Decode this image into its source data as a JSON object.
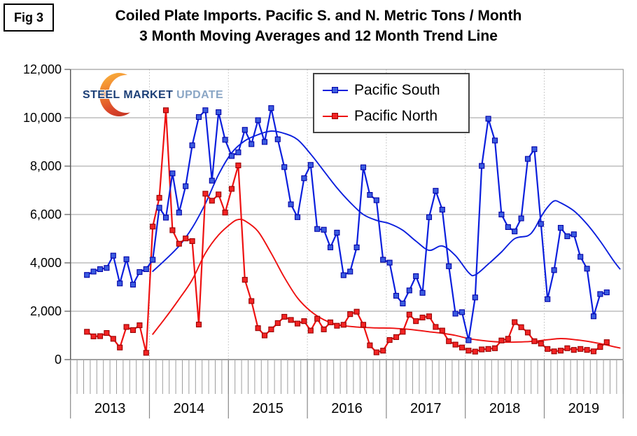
{
  "figure_label": "Fig 3",
  "title": {
    "line1": "Coiled Plate Imports. Pacific S. and N. Metric Tons / Month",
    "line2": "3 Month Moving Averages and 12 Month Trend Line"
  },
  "logo": {
    "word1": "STEEL",
    "word2": "MARKET",
    "word3": "UPDATE"
  },
  "legend": {
    "items": [
      {
        "label": "Pacific South"
      },
      {
        "label": "Pacific North"
      }
    ]
  },
  "chart_data": {
    "type": "line",
    "title": "Coiled Plate Imports. Pacific S. and N. Metric Tons / Month - 3 Month Moving Averages and 12 Month Trend Line",
    "xlabel": "",
    "ylabel": "Metric Tons / Month",
    "ylim": [
      0,
      12000
    ],
    "grid": true,
    "legend_position": "top-center",
    "y_ticks": [
      0,
      2000,
      4000,
      6000,
      8000,
      10000,
      12000
    ],
    "y_tick_labels": [
      "0",
      "2,000",
      "4,000",
      "6,000",
      "8,000",
      "10,000",
      "12,000"
    ],
    "x_year_labels": [
      "2013",
      "2014",
      "2015",
      "2016",
      "2017",
      "2018",
      "2019"
    ],
    "months_per_year": 12,
    "first_data_month": "2013-03",
    "last_data_month": "2019-10",
    "start_month_index": 2,
    "series": [
      {
        "name": "Pacific South",
        "kind": "3-month moving average",
        "line_color": "#0b1fdd",
        "marker_color": "#3b5ce0",
        "marker_edge": "#0000a8",
        "values": [
          3500,
          3640,
          3740,
          3790,
          4300,
          3150,
          4150,
          3100,
          3620,
          3740,
          4130,
          6280,
          5870,
          7700,
          6080,
          7170,
          8860,
          10030,
          10310,
          7400,
          10230,
          9090,
          8420,
          8570,
          9500,
          8910,
          9900,
          9000,
          10400,
          9110,
          7960,
          6420,
          5890,
          7500,
          8050,
          5400,
          5370,
          4640,
          5250,
          3490,
          3640,
          4640,
          7950,
          6810,
          6590,
          4130,
          4010,
          2640,
          2320,
          2860,
          3450,
          2760,
          5890,
          6980,
          6200,
          3860,
          1900,
          1960,
          800,
          2570,
          8010,
          9960,
          9060,
          6000,
          5480,
          5300,
          5840,
          8300,
          8700,
          5610,
          2500,
          3700,
          5450,
          5100,
          5180,
          4250,
          3760,
          1790,
          2710,
          2780
        ]
      },
      {
        "name": "Pacific North",
        "kind": "3-month moving average",
        "line_color": "#ee1111",
        "marker_color": "#f22424",
        "marker_edge": "#990000",
        "values": [
          1150,
          960,
          970,
          1100,
          860,
          500,
          1350,
          1220,
          1420,
          280,
          5500,
          6690,
          10310,
          5350,
          4790,
          5010,
          4900,
          1450,
          6860,
          6570,
          6830,
          6080,
          7060,
          8030,
          3300,
          2420,
          1300,
          1000,
          1250,
          1510,
          1770,
          1640,
          1490,
          1590,
          1200,
          1690,
          1250,
          1540,
          1400,
          1440,
          1880,
          1980,
          1440,
          590,
          300,
          370,
          810,
          930,
          1150,
          1860,
          1590,
          1740,
          1790,
          1350,
          1200,
          760,
          620,
          500,
          370,
          330,
          420,
          440,
          470,
          790,
          860,
          1550,
          1340,
          1120,
          760,
          660,
          440,
          340,
          370,
          470,
          400,
          440,
          400,
          340,
          520,
          720
        ]
      },
      {
        "name": "Pacific South trend",
        "kind": "12-month trend line",
        "line_color": "#0b1fdd",
        "points": [
          [
            12,
            3650
          ],
          [
            14,
            4150
          ],
          [
            16,
            4700
          ],
          [
            18,
            5450
          ],
          [
            20,
            6450
          ],
          [
            22,
            7650
          ],
          [
            24,
            8550
          ],
          [
            26,
            9050
          ],
          [
            28,
            9300
          ],
          [
            30,
            9450
          ],
          [
            32,
            9350
          ],
          [
            34,
            9100
          ],
          [
            36,
            8500
          ],
          [
            38,
            7800
          ],
          [
            40,
            7100
          ],
          [
            42,
            6500
          ],
          [
            44,
            6000
          ],
          [
            46,
            5760
          ],
          [
            48,
            5620
          ],
          [
            50,
            5350
          ],
          [
            52,
            4900
          ],
          [
            54,
            4520
          ],
          [
            56,
            4700
          ],
          [
            58,
            4300
          ],
          [
            60,
            3600
          ],
          [
            61,
            3500
          ],
          [
            63,
            3950
          ],
          [
            65,
            4450
          ],
          [
            67,
            5000
          ],
          [
            69,
            5120
          ],
          [
            70,
            5400
          ],
          [
            71,
            5900
          ],
          [
            72,
            6300
          ],
          [
            73,
            6560
          ],
          [
            74,
            6480
          ],
          [
            76,
            6150
          ],
          [
            78,
            5600
          ],
          [
            80,
            4900
          ],
          [
            82,
            4100
          ],
          [
            83,
            3750
          ]
        ]
      },
      {
        "name": "Pacific North trend",
        "kind": "12-month trend line",
        "line_color": "#ee1111",
        "points": [
          [
            12,
            1050
          ],
          [
            14,
            1750
          ],
          [
            16,
            2500
          ],
          [
            18,
            3300
          ],
          [
            20,
            4400
          ],
          [
            22,
            5150
          ],
          [
            24,
            5650
          ],
          [
            25,
            5790
          ],
          [
            26,
            5740
          ],
          [
            28,
            5300
          ],
          [
            30,
            4400
          ],
          [
            32,
            3400
          ],
          [
            34,
            2550
          ],
          [
            36,
            2000
          ],
          [
            38,
            1650
          ],
          [
            40,
            1450
          ],
          [
            42,
            1370
          ],
          [
            44,
            1330
          ],
          [
            46,
            1310
          ],
          [
            48,
            1300
          ],
          [
            50,
            1270
          ],
          [
            52,
            1220
          ],
          [
            54,
            1150
          ],
          [
            56,
            1090
          ],
          [
            58,
            1000
          ],
          [
            60,
            870
          ],
          [
            62,
            790
          ],
          [
            64,
            740
          ],
          [
            66,
            720
          ],
          [
            68,
            730
          ],
          [
            70,
            760
          ],
          [
            72,
            820
          ],
          [
            74,
            870
          ],
          [
            76,
            830
          ],
          [
            78,
            760
          ],
          [
            80,
            660
          ],
          [
            82,
            540
          ],
          [
            83,
            480
          ]
        ]
      }
    ]
  }
}
